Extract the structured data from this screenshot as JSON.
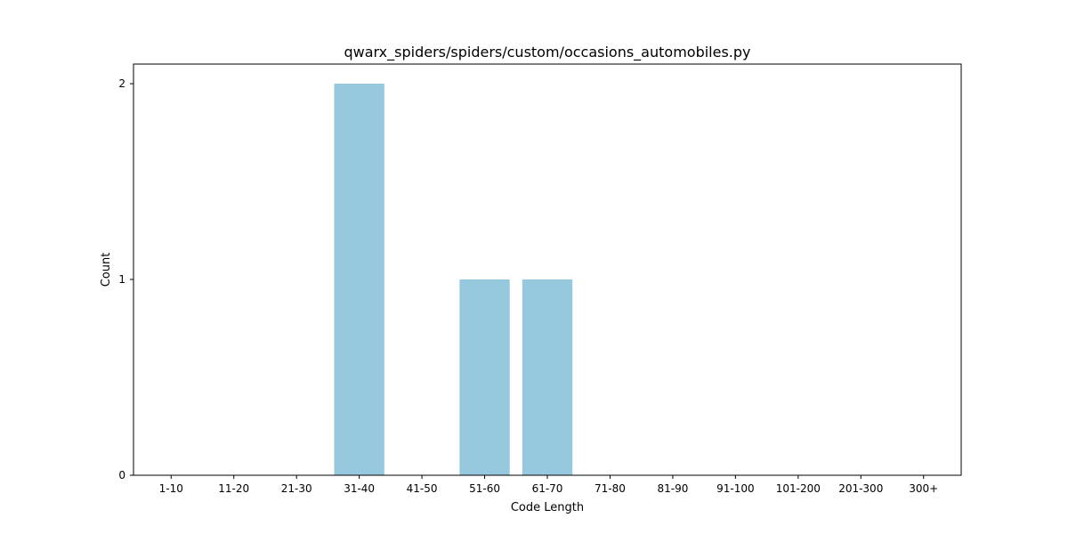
{
  "chart_data": {
    "type": "bar",
    "title": "qwarx_spiders/spiders/custom/occasions_automobiles.py",
    "xlabel": "Code Length",
    "ylabel": "Count",
    "categories": [
      "1-10",
      "11-20",
      "21-30",
      "31-40",
      "41-50",
      "51-60",
      "61-70",
      "71-80",
      "81-90",
      "91-100",
      "101-200",
      "201-300",
      "300+"
    ],
    "values": [
      0,
      0,
      0,
      2,
      0,
      1,
      1,
      0,
      0,
      0,
      0,
      0,
      0
    ],
    "yticks": [
      0,
      1,
      2
    ],
    "ylim": [
      0,
      2.1
    ],
    "bar_color": "#96c9de",
    "grid": false,
    "legend": false
  }
}
